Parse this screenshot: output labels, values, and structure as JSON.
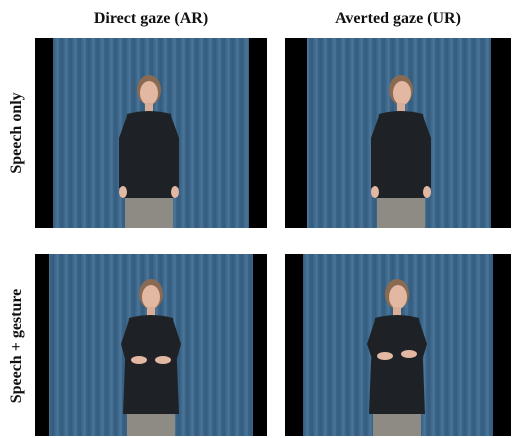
{
  "columns": [
    {
      "label": "Direct gaze (AR)"
    },
    {
      "label": "Averted gaze (UR)"
    }
  ],
  "rows": [
    {
      "label": "Speech only"
    },
    {
      "label": "Speech + gesture"
    }
  ],
  "colors": {
    "curtain": "#3f6a8f",
    "curtain_dark": "#2f5576",
    "shirt": "#1e2226",
    "skin": "#e2b8a2",
    "hair": "#8a6a52",
    "skirt": "#8e8a84",
    "side_bars": "#000000"
  },
  "frames": [
    {
      "row": 0,
      "col": 0,
      "gesture": false
    },
    {
      "row": 0,
      "col": 1,
      "gesture": false
    },
    {
      "row": 1,
      "col": 0,
      "gesture": true
    },
    {
      "row": 1,
      "col": 1,
      "gesture": true
    }
  ]
}
